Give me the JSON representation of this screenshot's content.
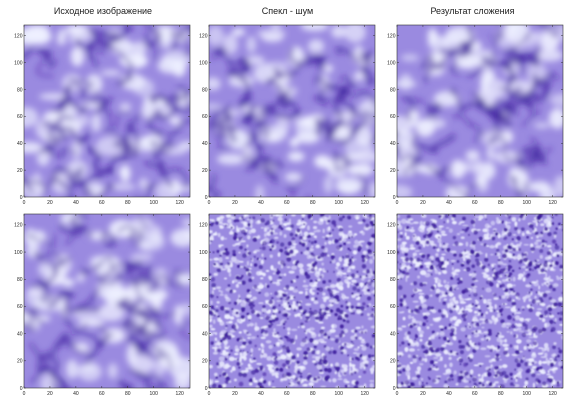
{
  "titles": {
    "col1": "Исходное изображение",
    "col2": "Спекл - шум",
    "col3": "Результат сложения"
  },
  "axis": {
    "x_ticks": [
      "0",
      "20",
      "40",
      "60",
      "80",
      "100",
      "120"
    ],
    "y_ticks": [
      "0",
      "20",
      "40",
      "60",
      "80",
      "100",
      "120"
    ],
    "range": [
      0,
      128
    ]
  },
  "colors": {
    "background_light": "#eef0ff",
    "mid": "#9a8ae0",
    "dark": "#3a1a9a"
  },
  "panels": [
    {
      "id": "top-original",
      "pattern": "smooth",
      "seed": 3
    },
    {
      "id": "top-noise",
      "pattern": "smooth",
      "seed": 11
    },
    {
      "id": "top-sum",
      "pattern": "smooth",
      "seed": 19
    },
    {
      "id": "bottom-original",
      "pattern": "smooth",
      "seed": 27
    },
    {
      "id": "bottom-noise",
      "pattern": "speckle",
      "seed": 35
    },
    {
      "id": "bottom-sum",
      "pattern": "speckle",
      "seed": 43
    }
  ]
}
